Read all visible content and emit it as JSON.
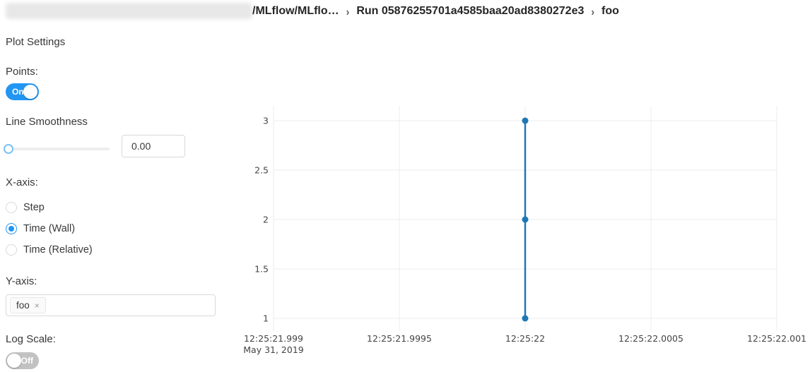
{
  "breadcrumb": {
    "redacted_segment": "",
    "experiment": "/MLflow/MLflo…",
    "separator": "›",
    "run": "Run 05876255701a4585baa20ad8380272e3",
    "metric": "foo"
  },
  "settings": {
    "title": "Plot Settings",
    "points": {
      "label": "Points:",
      "state": "On"
    },
    "smoothness": {
      "label": "Line Smoothness",
      "value": "0.00"
    },
    "x_axis": {
      "label": "X-axis:",
      "options": [
        {
          "label": "Step",
          "selected": false
        },
        {
          "label": "Time (Wall)",
          "selected": true
        },
        {
          "label": "Time (Relative)",
          "selected": false
        }
      ]
    },
    "y_axis": {
      "label": "Y-axis:",
      "tags": [
        {
          "label": "foo",
          "remove_icon": "×"
        }
      ]
    },
    "log_scale": {
      "label": "Log Scale:",
      "state": "Off"
    }
  },
  "colors": {
    "accent_blue": "#2196f3",
    "toggle_off_gray": "#c2c2c2",
    "series_line": "#1f77b4",
    "gridline": "#ececec",
    "tick_text": "#444444"
  },
  "chart_data": {
    "type": "line",
    "title": "",
    "xlabel": "",
    "ylabel": "",
    "grid": true,
    "legend": "none",
    "x_tick_labels": [
      "12:25:21.999",
      "12:25:21.9995",
      "12:25:22",
      "12:25:22.0005",
      "12:25:22.001"
    ],
    "x_first_tick_sublabel": "May 31, 2019",
    "y_ticks": [
      1,
      1.5,
      2,
      2.5,
      3
    ],
    "ylim": [
      1,
      3
    ],
    "series": [
      {
        "name": "foo",
        "color": "#1f77b4",
        "points": [
          {
            "x": "12:25:22",
            "y": 1
          },
          {
            "x": "12:25:22",
            "y": 2
          },
          {
            "x": "12:25:22",
            "y": 3
          }
        ]
      }
    ]
  }
}
